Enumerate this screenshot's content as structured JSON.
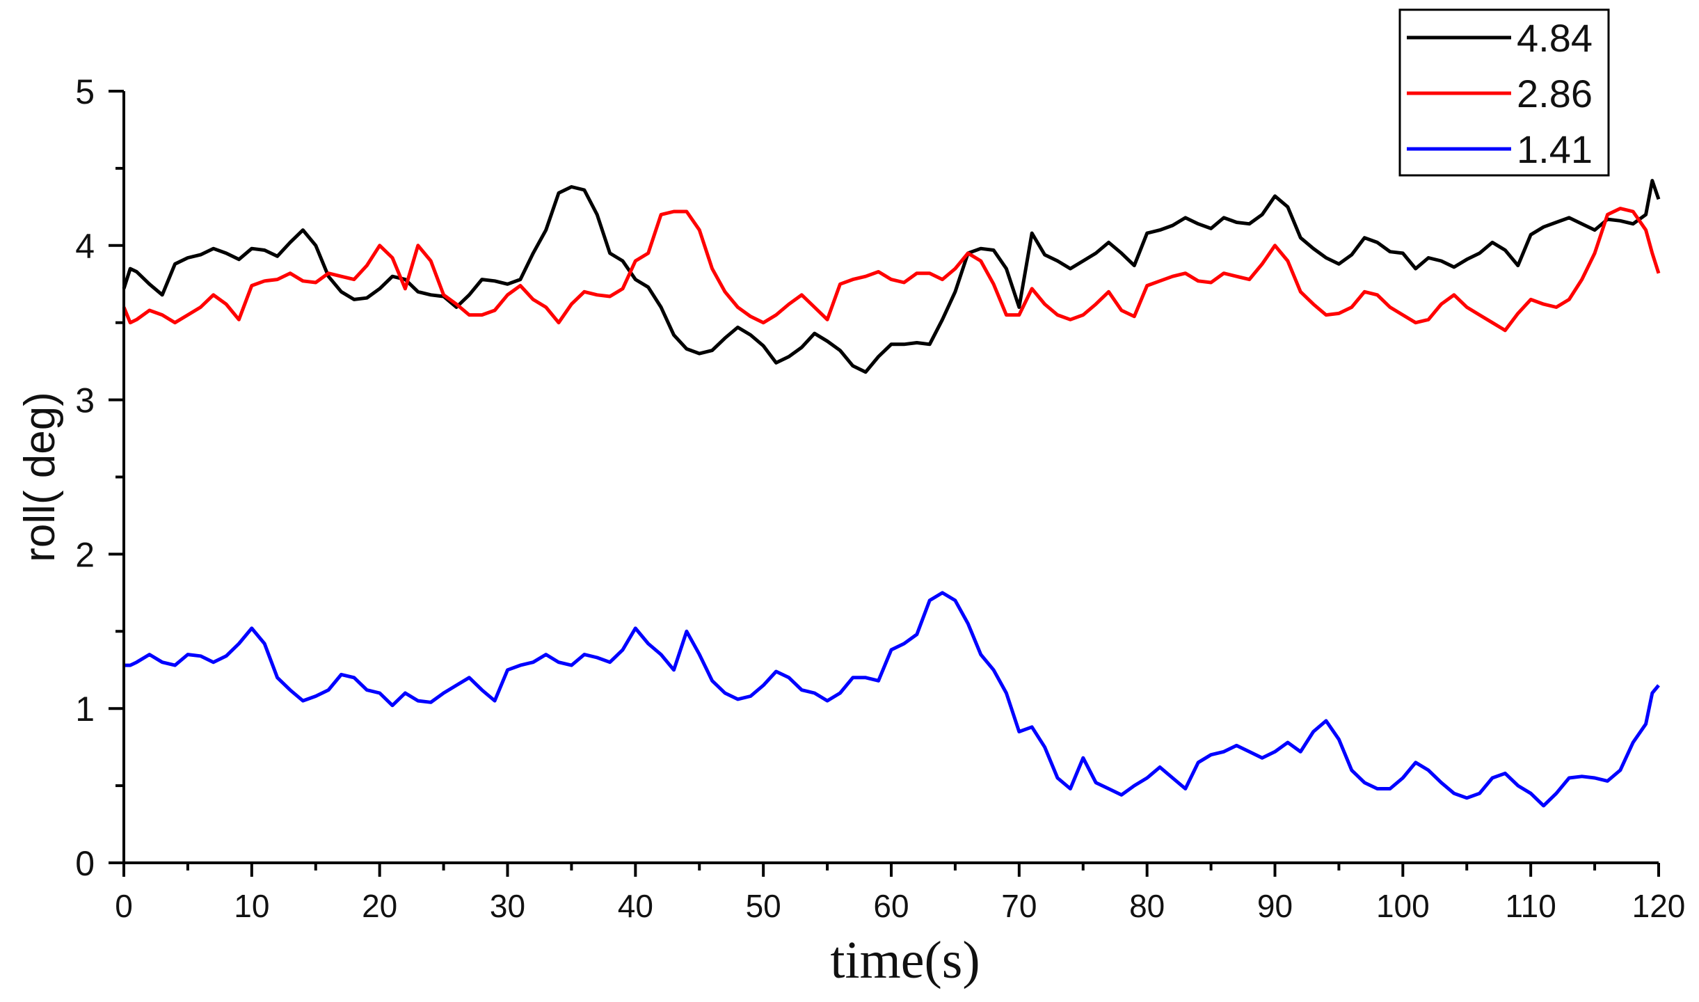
{
  "chart_data": {
    "type": "line",
    "title": "",
    "xlabel": "time(s)",
    "ylabel": "roll( deg)",
    "xlim": [
      0,
      120
    ],
    "ylim": [
      0,
      5
    ],
    "x_ticks": [
      "0",
      "10",
      "20",
      "30",
      "40",
      "50",
      "60",
      "70",
      "80",
      "90",
      "100",
      "110",
      "120"
    ],
    "y_ticks": [
      "0",
      "1",
      "2",
      "3",
      "4",
      "5"
    ],
    "legend_position": "top-right",
    "series": [
      {
        "name": "4.84",
        "color": "#000000",
        "x": [
          0,
          0.5,
          1,
          2,
          3,
          4,
          5,
          6,
          7,
          8,
          9,
          10,
          11,
          12,
          13,
          14,
          15,
          16,
          17,
          18,
          19,
          20,
          21,
          22,
          23,
          24,
          25,
          26,
          27,
          28,
          29,
          30,
          31,
          32,
          33,
          34,
          35,
          36,
          37,
          38,
          39,
          40,
          41,
          42,
          43,
          44,
          45,
          46,
          47,
          48,
          49,
          50,
          51,
          52,
          53,
          54,
          55,
          56,
          57,
          58,
          59,
          60,
          61,
          62,
          63,
          64,
          65,
          66,
          67,
          68,
          69,
          70,
          71,
          72,
          73,
          74,
          75,
          76,
          77,
          78,
          79,
          80,
          81,
          82,
          83,
          84,
          85,
          86,
          87,
          88,
          89,
          90,
          91,
          92,
          93,
          94,
          95,
          96,
          97,
          98,
          99,
          100,
          101,
          102,
          103,
          104,
          105,
          106,
          107,
          108,
          109,
          110,
          111,
          112,
          113,
          114,
          115,
          116,
          117,
          118,
          119,
          119.5,
          120
        ],
        "values": [
          3.72,
          3.85,
          3.83,
          3.75,
          3.68,
          3.88,
          3.92,
          3.94,
          3.98,
          3.95,
          3.91,
          3.98,
          3.97,
          3.93,
          4.02,
          4.1,
          4.0,
          3.8,
          3.7,
          3.65,
          3.66,
          3.72,
          3.8,
          3.78,
          3.7,
          3.68,
          3.67,
          3.6,
          3.68,
          3.78,
          3.77,
          3.75,
          3.78,
          3.95,
          4.1,
          4.34,
          4.38,
          4.36,
          4.2,
          3.95,
          3.9,
          3.78,
          3.73,
          3.6,
          3.42,
          3.33,
          3.3,
          3.32,
          3.4,
          3.47,
          3.42,
          3.35,
          3.24,
          3.28,
          3.34,
          3.43,
          3.38,
          3.32,
          3.22,
          3.18,
          3.28,
          3.36,
          3.36,
          3.37,
          3.36,
          3.52,
          3.7,
          3.95,
          3.98,
          3.97,
          3.85,
          3.6,
          4.08,
          3.94,
          3.9,
          3.85,
          3.9,
          3.95,
          4.02,
          3.95,
          3.87,
          4.08,
          4.1,
          4.13,
          4.18,
          4.14,
          4.11,
          4.18,
          4.15,
          4.14,
          4.2,
          4.32,
          4.25,
          4.05,
          3.98,
          3.92,
          3.88,
          3.94,
          4.05,
          4.02,
          3.96,
          3.95,
          3.85,
          3.92,
          3.9,
          3.86,
          3.91,
          3.95,
          4.02,
          3.97,
          3.87,
          4.07,
          4.12,
          4.15,
          4.18,
          4.14,
          4.1,
          4.17,
          4.16,
          4.14,
          4.2,
          4.42,
          4.3
        ]
      },
      {
        "name": "2.86",
        "color": "#ff0000",
        "x": [
          0,
          0.5,
          1,
          2,
          3,
          4,
          5,
          6,
          7,
          8,
          9,
          10,
          11,
          12,
          13,
          14,
          15,
          16,
          17,
          18,
          19,
          20,
          21,
          22,
          23,
          24,
          25,
          26,
          27,
          28,
          29,
          30,
          31,
          32,
          33,
          34,
          35,
          36,
          37,
          38,
          39,
          40,
          41,
          42,
          43,
          44,
          45,
          46,
          47,
          48,
          49,
          50,
          51,
          52,
          53,
          54,
          55,
          56,
          57,
          58,
          59,
          60,
          61,
          62,
          63,
          64,
          65,
          66,
          67,
          68,
          69,
          70,
          71,
          72,
          73,
          74,
          75,
          76,
          77,
          78,
          79,
          80,
          81,
          82,
          83,
          84,
          85,
          86,
          87,
          88,
          89,
          90,
          91,
          92,
          93,
          94,
          95,
          96,
          97,
          98,
          99,
          100,
          101,
          102,
          103,
          104,
          105,
          106,
          107,
          108,
          109,
          110,
          111,
          112,
          113,
          114,
          115,
          116,
          117,
          118,
          119,
          119.5,
          120
        ],
        "values": [
          3.6,
          3.5,
          3.52,
          3.58,
          3.55,
          3.5,
          3.55,
          3.6,
          3.68,
          3.62,
          3.52,
          3.74,
          3.77,
          3.78,
          3.82,
          3.77,
          3.76,
          3.82,
          3.8,
          3.78,
          3.87,
          4.0,
          3.92,
          3.72,
          4.0,
          3.9,
          3.68,
          3.62,
          3.55,
          3.55,
          3.58,
          3.68,
          3.74,
          3.65,
          3.6,
          3.5,
          3.62,
          3.7,
          3.68,
          3.67,
          3.72,
          3.9,
          3.95,
          4.2,
          4.22,
          4.22,
          4.1,
          3.85,
          3.7,
          3.6,
          3.54,
          3.5,
          3.55,
          3.62,
          3.68,
          3.6,
          3.52,
          3.75,
          3.78,
          3.8,
          3.83,
          3.78,
          3.76,
          3.82,
          3.82,
          3.78,
          3.85,
          3.95,
          3.9,
          3.75,
          3.55,
          3.55,
          3.72,
          3.62,
          3.55,
          3.52,
          3.55,
          3.62,
          3.7,
          3.58,
          3.54,
          3.74,
          3.77,
          3.8,
          3.82,
          3.77,
          3.76,
          3.82,
          3.8,
          3.78,
          3.88,
          4.0,
          3.9,
          3.7,
          3.62,
          3.55,
          3.56,
          3.6,
          3.7,
          3.68,
          3.6,
          3.55,
          3.5,
          3.52,
          3.62,
          3.68,
          3.6,
          3.55,
          3.5,
          3.45,
          3.56,
          3.65,
          3.62,
          3.6,
          3.65,
          3.78,
          3.95,
          4.2,
          4.24,
          4.22,
          4.1,
          3.95,
          3.82
        ]
      },
      {
        "name": "1.41",
        "color": "#0000ff",
        "x": [
          0,
          0.5,
          1,
          2,
          3,
          4,
          5,
          6,
          7,
          8,
          9,
          10,
          11,
          12,
          13,
          14,
          15,
          16,
          17,
          18,
          19,
          20,
          21,
          22,
          23,
          24,
          25,
          26,
          27,
          28,
          29,
          30,
          31,
          32,
          33,
          34,
          35,
          36,
          37,
          38,
          39,
          40,
          41,
          42,
          43,
          44,
          45,
          46,
          47,
          48,
          49,
          50,
          51,
          52,
          53,
          54,
          55,
          56,
          57,
          58,
          59,
          60,
          61,
          62,
          63,
          64,
          65,
          66,
          67,
          68,
          69,
          70,
          71,
          72,
          73,
          74,
          75,
          76,
          77,
          78,
          79,
          80,
          81,
          82,
          83,
          84,
          85,
          86,
          87,
          88,
          89,
          90,
          91,
          92,
          93,
          94,
          95,
          96,
          97,
          98,
          99,
          100,
          101,
          102,
          103,
          104,
          105,
          106,
          107,
          108,
          109,
          110,
          111,
          112,
          113,
          114,
          115,
          116,
          117,
          118,
          119,
          119.5,
          120
        ],
        "values": [
          1.28,
          1.28,
          1.3,
          1.35,
          1.3,
          1.28,
          1.35,
          1.34,
          1.3,
          1.34,
          1.42,
          1.52,
          1.42,
          1.2,
          1.12,
          1.05,
          1.08,
          1.12,
          1.22,
          1.2,
          1.12,
          1.1,
          1.02,
          1.1,
          1.05,
          1.04,
          1.1,
          1.15,
          1.2,
          1.12,
          1.05,
          1.25,
          1.28,
          1.3,
          1.35,
          1.3,
          1.28,
          1.35,
          1.33,
          1.3,
          1.38,
          1.52,
          1.42,
          1.35,
          1.25,
          1.5,
          1.35,
          1.18,
          1.1,
          1.06,
          1.08,
          1.15,
          1.24,
          1.2,
          1.12,
          1.1,
          1.05,
          1.1,
          1.2,
          1.2,
          1.18,
          1.38,
          1.42,
          1.48,
          1.7,
          1.75,
          1.7,
          1.55,
          1.35,
          1.25,
          1.1,
          0.85,
          0.88,
          0.75,
          0.55,
          0.48,
          0.68,
          0.52,
          0.48,
          0.44,
          0.5,
          0.55,
          0.62,
          0.55,
          0.48,
          0.65,
          0.7,
          0.72,
          0.76,
          0.72,
          0.68,
          0.72,
          0.78,
          0.72,
          0.85,
          0.92,
          0.8,
          0.6,
          0.52,
          0.48,
          0.48,
          0.55,
          0.65,
          0.6,
          0.52,
          0.45,
          0.42,
          0.45,
          0.55,
          0.58,
          0.5,
          0.45,
          0.37,
          0.45,
          0.55,
          0.56,
          0.55,
          0.53,
          0.6,
          0.78,
          0.9,
          1.1,
          1.15
        ]
      }
    ]
  }
}
